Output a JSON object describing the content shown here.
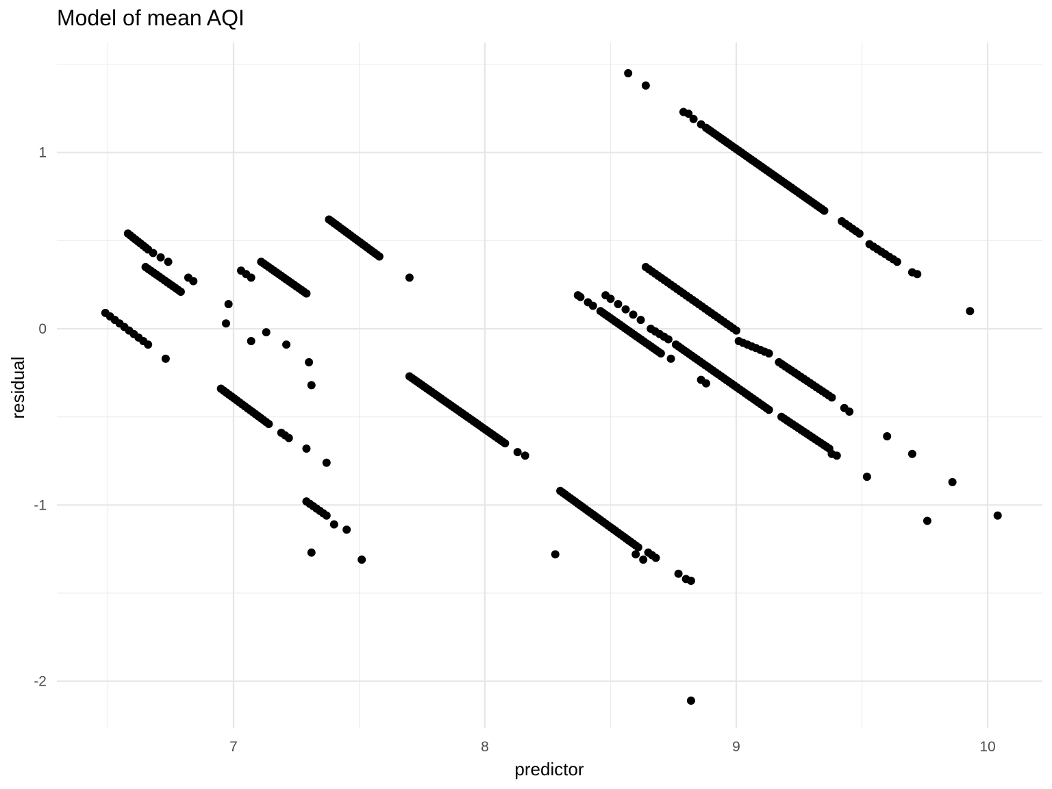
{
  "chart_data": {
    "type": "scatter",
    "title": "Model of mean AQI",
    "xlabel": "predictor",
    "ylabel": "residual",
    "xlim": [
      6.27,
      10.22
    ],
    "ylim": [
      -2.28,
      1.64
    ],
    "x_ticks": [
      7,
      8,
      9,
      10
    ],
    "x_minor_ticks": [
      6.5,
      7.5,
      8.5,
      9.5
    ],
    "y_ticks": [
      -2,
      -1,
      0,
      1
    ],
    "y_minor_ticks": [
      -1.5,
      -0.5,
      0.5,
      1.5
    ],
    "x_tick_labels": [
      "7",
      "8",
      "9",
      "10"
    ],
    "y_tick_labels": [
      "-2",
      "-1",
      "0",
      "1"
    ],
    "grid": true,
    "legend": "none",
    "point_color": "#000000",
    "segments": [
      {
        "x0": 6.49,
        "y0": 0.09,
        "x1": 6.66,
        "y1": -0.09,
        "n": 10
      },
      {
        "x0": 6.58,
        "y0": 0.54,
        "x1": 6.66,
        "y1": 0.45,
        "n": 9
      },
      {
        "x0": 6.68,
        "y0": 0.43,
        "x1": 6.74,
        "y1": 0.38,
        "n": 3
      },
      {
        "x0": 6.65,
        "y0": 0.35,
        "x1": 6.79,
        "y1": 0.21,
        "n": 14
      },
      {
        "x0": 6.82,
        "y0": 0.29,
        "x1": 6.84,
        "y1": 0.27,
        "n": 2
      },
      {
        "x0": 6.95,
        "y0": -0.34,
        "x1": 7.14,
        "y1": -0.54,
        "n": 19
      },
      {
        "x0": 7.03,
        "y0": 0.33,
        "x1": 7.07,
        "y1": 0.29,
        "n": 3
      },
      {
        "x0": 7.11,
        "y0": 0.38,
        "x1": 7.29,
        "y1": 0.2,
        "n": 19
      },
      {
        "x0": 7.38,
        "y0": 0.62,
        "x1": 7.58,
        "y1": 0.41,
        "n": 22
      },
      {
        "x0": 7.29,
        "y0": -0.98,
        "x1": 7.37,
        "y1": -1.06,
        "n": 7
      },
      {
        "x0": 7.4,
        "y0": -1.11,
        "x1": 7.45,
        "y1": -1.14,
        "n": 2
      },
      {
        "x0": 7.19,
        "y0": -0.59,
        "x1": 7.22,
        "y1": -0.62,
        "n": 3
      },
      {
        "x0": 7.7,
        "y0": -0.27,
        "x1": 8.08,
        "y1": -0.65,
        "n": 40
      },
      {
        "x0": 8.3,
        "y0": -0.92,
        "x1": 8.61,
        "y1": -1.24,
        "n": 32
      },
      {
        "x0": 8.65,
        "y0": -1.27,
        "x1": 8.68,
        "y1": -1.3,
        "n": 3
      },
      {
        "x0": 8.79,
        "y0": 1.23,
        "x1": 8.81,
        "y1": 1.22,
        "n": 2
      },
      {
        "x0": 8.83,
        "y0": 1.19,
        "x1": 8.86,
        "y1": 1.16,
        "n": 2
      },
      {
        "x0": 8.88,
        "y0": 1.14,
        "x1": 9.35,
        "y1": 0.67,
        "n": 48
      },
      {
        "x0": 9.42,
        "y0": 0.61,
        "x1": 9.49,
        "y1": 0.54,
        "n": 6
      },
      {
        "x0": 9.53,
        "y0": 0.48,
        "x1": 9.64,
        "y1": 0.38,
        "n": 8
      },
      {
        "x0": 9.7,
        "y0": 0.32,
        "x1": 9.72,
        "y1": 0.31,
        "n": 2
      },
      {
        "x0": 8.37,
        "y0": 0.19,
        "x1": 8.38,
        "y1": 0.18,
        "n": 2
      },
      {
        "x0": 8.41,
        "y0": 0.15,
        "x1": 8.43,
        "y1": 0.13,
        "n": 2
      },
      {
        "x0": 8.48,
        "y0": 0.19,
        "x1": 8.5,
        "y1": 0.17,
        "n": 2
      },
      {
        "x0": 8.53,
        "y0": 0.14,
        "x1": 8.62,
        "y1": 0.05,
        "n": 4
      },
      {
        "x0": 8.46,
        "y0": 0.1,
        "x1": 8.7,
        "y1": -0.14,
        "n": 26
      },
      {
        "x0": 8.64,
        "y0": 0.35,
        "x1": 9.0,
        "y1": -0.01,
        "n": 30
      },
      {
        "x0": 9.01,
        "y0": -0.07,
        "x1": 9.13,
        "y1": -0.14,
        "n": 8
      },
      {
        "x0": 9.17,
        "y0": -0.19,
        "x1": 9.38,
        "y1": -0.39,
        "n": 18
      },
      {
        "x0": 9.43,
        "y0": -0.45,
        "x1": 9.45,
        "y1": -0.47,
        "n": 2
      },
      {
        "x0": 8.66,
        "y0": 0.0,
        "x1": 8.73,
        "y1": -0.06,
        "n": 5
      },
      {
        "x0": 8.76,
        "y0": -0.09,
        "x1": 9.13,
        "y1": -0.46,
        "n": 36
      },
      {
        "x0": 9.18,
        "y0": -0.5,
        "x1": 9.37,
        "y1": -0.68,
        "n": 18
      },
      {
        "x0": 9.38,
        "y0": -0.71,
        "x1": 9.4,
        "y1": -0.72,
        "n": 2
      }
    ],
    "points": [
      [
        6.73,
        -0.17
      ],
      [
        6.97,
        0.03
      ],
      [
        6.98,
        0.14
      ],
      [
        7.07,
        -0.07
      ],
      [
        7.13,
        -0.02
      ],
      [
        7.21,
        -0.09
      ],
      [
        7.3,
        -0.19
      ],
      [
        7.31,
        -0.32
      ],
      [
        7.29,
        -0.68
      ],
      [
        7.37,
        -0.76
      ],
      [
        7.31,
        -1.27
      ],
      [
        7.51,
        -1.31
      ],
      [
        7.7,
        0.29
      ],
      [
        8.13,
        -0.7
      ],
      [
        8.16,
        -0.72
      ],
      [
        8.28,
        -1.28
      ],
      [
        8.6,
        -1.28
      ],
      [
        8.63,
        -1.31
      ],
      [
        8.77,
        -1.39
      ],
      [
        8.8,
        -1.42
      ],
      [
        8.82,
        -1.43
      ],
      [
        8.82,
        -2.11
      ],
      [
        8.74,
        -0.17
      ],
      [
        8.86,
        -0.29
      ],
      [
        8.88,
        -0.31
      ],
      [
        8.57,
        1.45
      ],
      [
        8.64,
        1.38
      ],
      [
        9.52,
        -0.84
      ],
      [
        9.6,
        -0.61
      ],
      [
        9.7,
        -0.71
      ],
      [
        9.76,
        -1.09
      ],
      [
        9.86,
        -0.87
      ],
      [
        9.93,
        0.1
      ],
      [
        10.04,
        -1.06
      ]
    ]
  }
}
